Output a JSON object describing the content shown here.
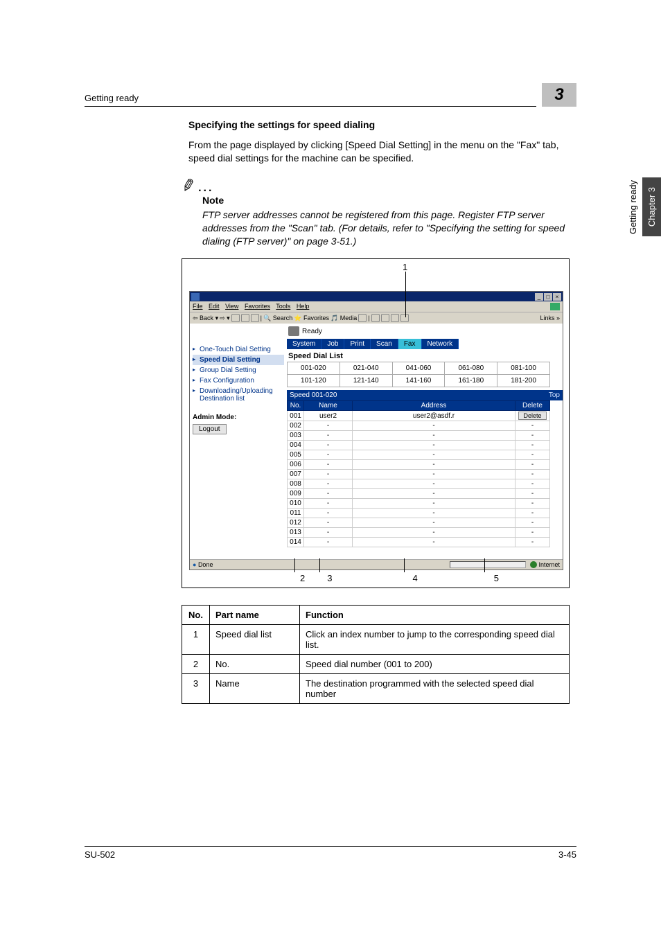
{
  "header": {
    "section": "Getting ready",
    "chapter_number": "3"
  },
  "side_tab": {
    "light": "Getting ready",
    "dark": "Chapter 3"
  },
  "title": "Specifying the settings for speed dialing",
  "paragraph": "From the page displayed by clicking [Speed Dial Setting] in the menu on the \"Fax\" tab, speed dial settings for the machine can be specified.",
  "note": {
    "label": "Note",
    "body": "FTP server addresses cannot be registered from this page. Register FTP server addresses from the \"Scan\" tab. (For details, refer to \"Specifying the setting for speed dialing (FTP server)\" on page 3-51.)"
  },
  "callouts": {
    "c1": "1",
    "c2": "2",
    "c3": "3",
    "c4": "4",
    "c5": "5"
  },
  "browser": {
    "menu": [
      "File",
      "Edit",
      "View",
      "Favorites",
      "Tools",
      "Help"
    ],
    "toolbar_back": "Back",
    "toolbar_search": "Search",
    "toolbar_fav": "Favorites",
    "toolbar_media": "Media",
    "links": "Links",
    "status_text": "Ready",
    "tabs": [
      "System",
      "Job",
      "Print",
      "Scan",
      "Fax",
      "Network"
    ],
    "tab_selected": 4,
    "nav": [
      "One-Touch Dial Setting",
      "Speed Dial Setting",
      "Group Dial Setting",
      "Fax Configuration",
      "Downloading/Uploading Destination list"
    ],
    "nav_selected": 1,
    "admin_label": "Admin Mode:",
    "logout": "Logout",
    "list_title": "Speed Dial List",
    "ranges_row1": [
      "001-020",
      "021-040",
      "041-060",
      "061-080",
      "081-100"
    ],
    "ranges_row2": [
      "101-120",
      "121-140",
      "141-160",
      "161-180",
      "181-200"
    ],
    "speed_header": "Speed 001-020",
    "top_link": "Top",
    "columns": [
      "No.",
      "Name",
      "Address",
      "Delete"
    ],
    "rows": [
      {
        "no": "001",
        "name": "user2",
        "addr": "user2@asdf.r",
        "del": "Delete"
      },
      {
        "no": "002",
        "name": "-",
        "addr": "-",
        "del": "-"
      },
      {
        "no": "003",
        "name": "-",
        "addr": "-",
        "del": "-"
      },
      {
        "no": "004",
        "name": "-",
        "addr": "-",
        "del": "-"
      },
      {
        "no": "005",
        "name": "-",
        "addr": "-",
        "del": "-"
      },
      {
        "no": "006",
        "name": "-",
        "addr": "-",
        "del": "-"
      },
      {
        "no": "007",
        "name": "-",
        "addr": "-",
        "del": "-"
      },
      {
        "no": "008",
        "name": "-",
        "addr": "-",
        "del": "-"
      },
      {
        "no": "009",
        "name": "-",
        "addr": "-",
        "del": "-"
      },
      {
        "no": "010",
        "name": "-",
        "addr": "-",
        "del": "-"
      },
      {
        "no": "011",
        "name": "-",
        "addr": "-",
        "del": "-"
      },
      {
        "no": "012",
        "name": "-",
        "addr": "-",
        "del": "-"
      },
      {
        "no": "013",
        "name": "-",
        "addr": "-",
        "del": "-"
      },
      {
        "no": "014",
        "name": "-",
        "addr": "-",
        "del": "-"
      }
    ],
    "status_done": "Done",
    "status_inet": "Internet"
  },
  "desc": {
    "headers": [
      "No.",
      "Part name",
      "Function"
    ],
    "rows": [
      {
        "no": "1",
        "part": "Speed dial list",
        "func": "Click an index number to jump to the corresponding speed dial list."
      },
      {
        "no": "2",
        "part": "No.",
        "func": "Speed dial number (001 to 200)"
      },
      {
        "no": "3",
        "part": "Name",
        "func": "The destination programmed with the selected speed dial number"
      }
    ]
  },
  "footer": {
    "left": "SU-502",
    "right": "3-45"
  }
}
